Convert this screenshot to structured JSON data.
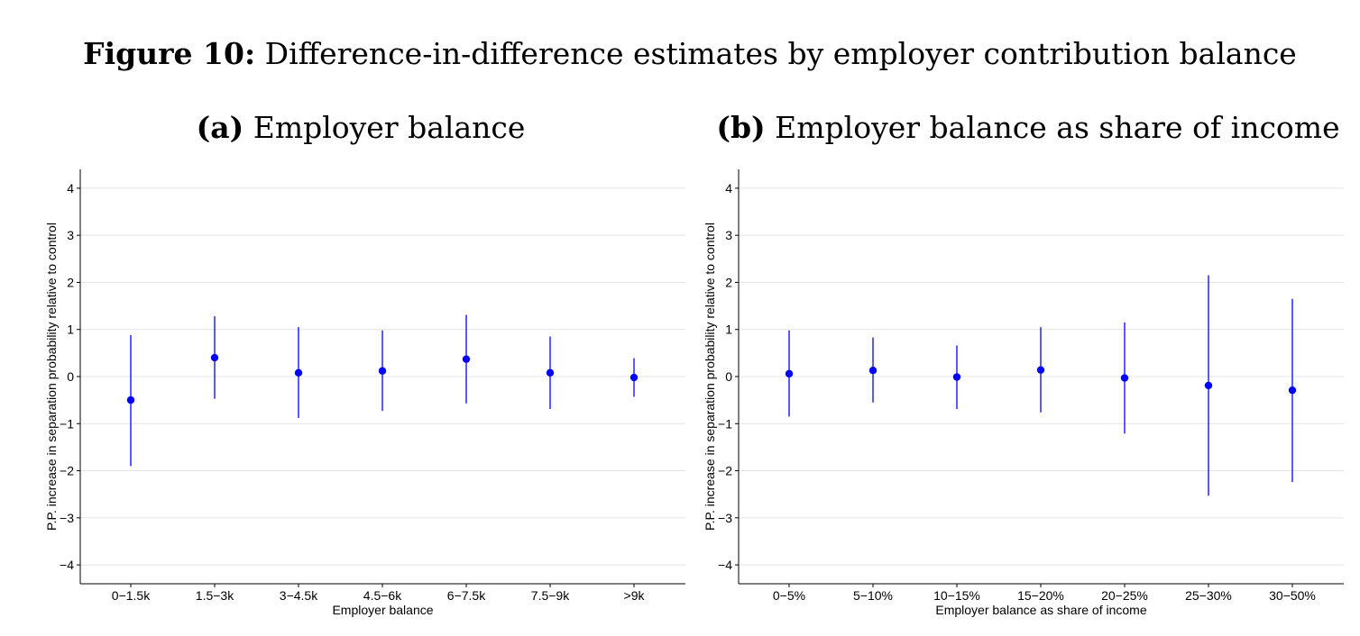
{
  "figure": {
    "title_bold": "Figure 10:",
    "title_rest": " Difference-in-difference estimates by employer contribution balance"
  },
  "chart_data": [
    {
      "type": "scatter",
      "panel_label": "(a)",
      "title": " Employer balance",
      "xlabel": "Employer balance",
      "ylabel": "P.P. increase in separation probability relative to control",
      "ylim": [
        -4.4,
        4.4
      ],
      "yticks": [
        -4,
        -3,
        -2,
        -1,
        0,
        1,
        2,
        3,
        4
      ],
      "ytick_labels": [
        "−4",
        "−3",
        "−2",
        "−1",
        "0",
        "1",
        "2",
        "3",
        "4"
      ],
      "grid": true,
      "color": "#0000ff",
      "categories": [
        "0−1.5k",
        "1.5−3k",
        "3−4.5k",
        "4.5−6k",
        "6−7.5k",
        "7.5−9k",
        ">9k"
      ],
      "estimates": [
        -0.5,
        0.4,
        0.08,
        0.12,
        0.37,
        0.08,
        -0.02
      ],
      "ci_low": [
        -1.9,
        -0.47,
        -0.88,
        -0.73,
        -0.57,
        -0.69,
        -0.43
      ],
      "ci_high": [
        0.88,
        1.28,
        1.05,
        0.98,
        1.31,
        0.85,
        0.39
      ]
    },
    {
      "type": "scatter",
      "panel_label": "(b)",
      "title": " Employer balance as share of income",
      "xlabel": "Employer balance as share of income",
      "ylabel": "P.P. increase in separation probability relative to control",
      "ylim": [
        -4.4,
        4.4
      ],
      "yticks": [
        -4,
        -3,
        -2,
        -1,
        0,
        1,
        2,
        3,
        4
      ],
      "ytick_labels": [
        "−4",
        "−3",
        "−2",
        "−1",
        "0",
        "1",
        "2",
        "3",
        "4"
      ],
      "grid": true,
      "color": "#0000ff",
      "categories": [
        "0−5%",
        "5−10%",
        "10−15%",
        "15−20%",
        "20−25%",
        "25−30%",
        "30−50%"
      ],
      "estimates": [
        0.06,
        0.13,
        -0.01,
        0.14,
        -0.03,
        -0.19,
        -0.29
      ],
      "ci_low": [
        -0.85,
        -0.55,
        -0.69,
        -0.76,
        -1.21,
        -2.53,
        -2.24
      ],
      "ci_high": [
        0.98,
        0.83,
        0.66,
        1.05,
        1.15,
        2.15,
        1.65
      ]
    }
  ]
}
